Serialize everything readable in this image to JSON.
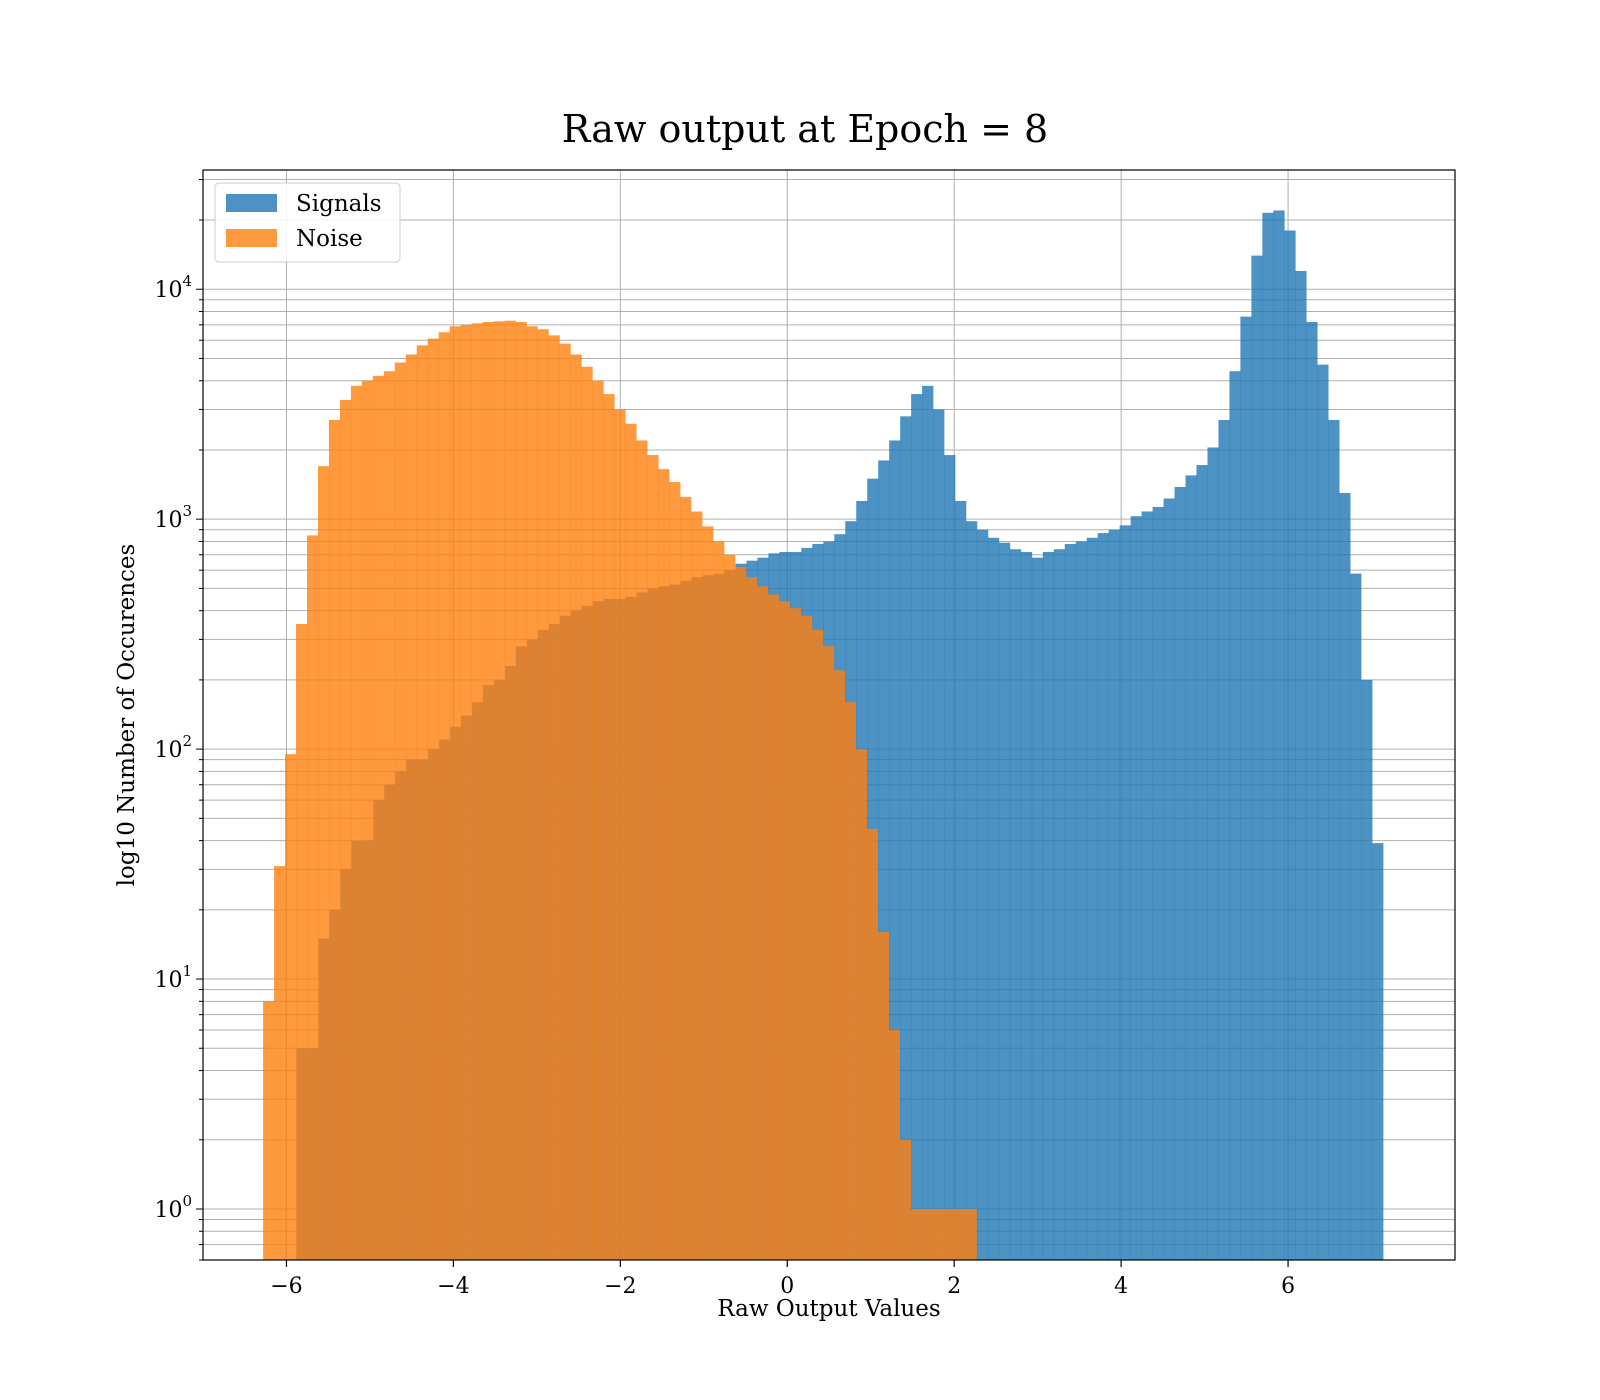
{
  "chart_data": {
    "type": "bar",
    "title": "Raw output at Epoch = 8",
    "xlabel": "Raw Output Values",
    "ylabel": "log10 Number of Occurences",
    "xlim": [
      -7.0,
      8.0
    ],
    "ylim": [
      0.6,
      33000
    ],
    "yscale": "log",
    "grid": true,
    "legend_position": "top-left",
    "x_ticks": [
      -6,
      -4,
      -2,
      0,
      2,
      4,
      6
    ],
    "x_tick_labels": [
      "−6",
      "−4",
      "−2",
      "0",
      "2",
      "4",
      "6"
    ],
    "y_ticks": [
      1,
      10,
      100,
      1000,
      10000
    ],
    "y_tick_labels": [
      {
        "base": "10",
        "exp": "0"
      },
      {
        "base": "10",
        "exp": "1"
      },
      {
        "base": "10",
        "exp": "2"
      },
      {
        "base": "10",
        "exp": "3"
      },
      {
        "base": "10",
        "exp": "4"
      }
    ],
    "colors": {
      "Signals": "#1f77b4",
      "Noise": "#ff7f0e"
    },
    "series": [
      {
        "name": "Signals",
        "color": "#1f77b4",
        "opacity": 0.8,
        "bin_start": -5.88,
        "bin_width": 0.1315,
        "counts": [
          5,
          5,
          15,
          20,
          30,
          40,
          40,
          60,
          70,
          80,
          90,
          90,
          100,
          110,
          125,
          140,
          160,
          190,
          200,
          230,
          280,
          300,
          330,
          350,
          380,
          400,
          420,
          440,
          450,
          450,
          460,
          480,
          500,
          510,
          520,
          540,
          560,
          570,
          580,
          600,
          640,
          660,
          680,
          710,
          720,
          720,
          750,
          780,
          800,
          860,
          980,
          1200,
          1500,
          1800,
          2200,
          2800,
          3500,
          3800,
          3000,
          1900,
          1200,
          980,
          900,
          830,
          790,
          740,
          720,
          680,
          720,
          740,
          780,
          800,
          830,
          870,
          900,
          940,
          1030,
          1080,
          1130,
          1230,
          1380,
          1550,
          1720,
          2050,
          2700,
          4400,
          7600,
          14000,
          21500,
          22000,
          18000,
          12000,
          7200,
          4700,
          2700,
          1300,
          580,
          200,
          39
        ]
      },
      {
        "name": "Noise",
        "color": "#ff7f0e",
        "opacity": 0.8,
        "bin_start": -6.28,
        "bin_width": 0.1315,
        "counts": [
          8,
          31,
          95,
          350,
          850,
          1700,
          2700,
          3300,
          3800,
          4000,
          4200,
          4400,
          4800,
          5200,
          5700,
          6100,
          6500,
          6900,
          7000,
          7100,
          7200,
          7250,
          7300,
          7200,
          6900,
          6700,
          6300,
          5800,
          5200,
          4600,
          4000,
          3500,
          3000,
          2600,
          2200,
          1900,
          1650,
          1450,
          1250,
          1080,
          930,
          800,
          700,
          620,
          560,
          510,
          470,
          440,
          410,
          380,
          330,
          280,
          220,
          160,
          100,
          45,
          16,
          6,
          2,
          1,
          1,
          1,
          1,
          1,
          1
        ]
      }
    ]
  }
}
